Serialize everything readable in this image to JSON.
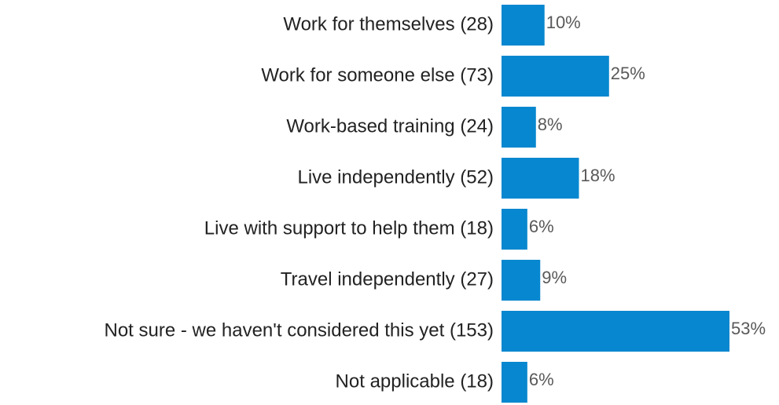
{
  "chart_data": {
    "type": "bar",
    "orientation": "horizontal",
    "categories": [
      "Work for themselves (28)",
      "Work for someone else (73)",
      "Work-based training (24)",
      "Live independently (52)",
      "Live with support to help them (18)",
      "Travel independently (27)",
      "Not sure - we haven't considered this yet (153)",
      "Not applicable (18)"
    ],
    "values": [
      10,
      25,
      8,
      18,
      6,
      9,
      53,
      6
    ],
    "value_labels": [
      "10%",
      "25%",
      "8%",
      "18%",
      "6%",
      "9%",
      "53%",
      "6%"
    ],
    "color": "#0787cf"
  }
}
